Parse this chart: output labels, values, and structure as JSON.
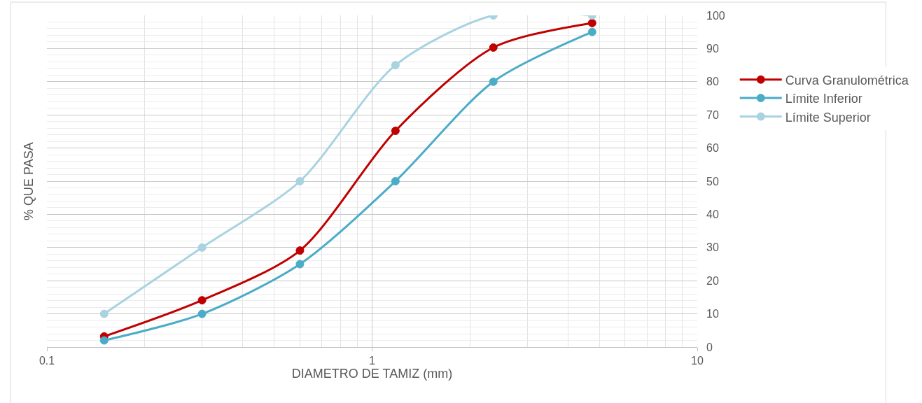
{
  "chart_data": {
    "type": "line",
    "xlabel": "DIAMETRO DE TAMIZ (mm)",
    "ylabel": "% QUE PASA",
    "x": [
      0.15,
      0.3,
      0.6,
      1.18,
      2.36,
      4.75
    ],
    "series": [
      {
        "name": "Curva Granulométrica",
        "color": "#c00000",
        "values": [
          3.2,
          14.1,
          29.1,
          65.2,
          90.3,
          97.7
        ]
      },
      {
        "name": "Límite Inferior",
        "color": "#4bacc6",
        "values": [
          2,
          10,
          25,
          50,
          80,
          95
        ]
      },
      {
        "name": "Límite Superior",
        "color": "#a9d3e1",
        "values": [
          10,
          30,
          50,
          85,
          100,
          100
        ]
      }
    ],
    "log": "x",
    "xlim": [
      0.1,
      10
    ],
    "xticks": [
      0.1,
      1,
      10
    ],
    "ylim": [
      0,
      100
    ],
    "yticks": [
      0,
      10,
      20,
      30,
      40,
      50,
      60,
      70,
      80,
      90,
      100
    ],
    "grid": true,
    "legend": "right",
    "marker": "circle",
    "line_style": "solid"
  }
}
